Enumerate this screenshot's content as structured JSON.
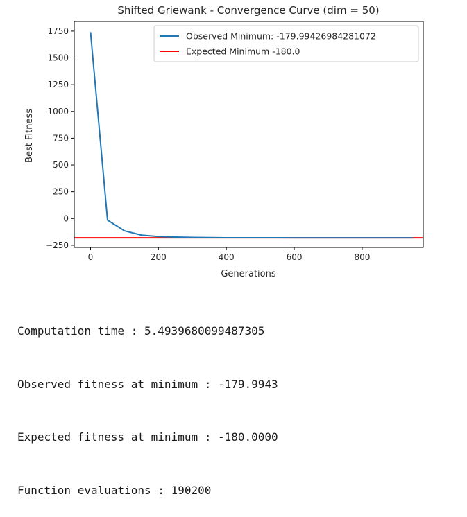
{
  "chart_data": {
    "type": "line",
    "title": "Shifted Griewank - Convergence Curve (dim = 50)",
    "xlabel": "Generations",
    "ylabel": "Best Fitness",
    "xlim": [
      -48,
      980
    ],
    "ylim": [
      -270,
      1840
    ],
    "xticks": [
      0,
      200,
      400,
      600,
      800
    ],
    "yticks": [
      -250,
      0,
      250,
      500,
      750,
      1000,
      1250,
      1500,
      1750
    ],
    "legend_position": "top-right",
    "grid": false,
    "series": [
      {
        "name": "Observed Minimum: -179.99426984281072",
        "color": "#1f77b4",
        "x": [
          0,
          50,
          100,
          150,
          200,
          250,
          300,
          350,
          400,
          450,
          500,
          550,
          600,
          650,
          700,
          750,
          800,
          850,
          900,
          950
        ],
        "y": [
          1740,
          -15,
          -115,
          -155,
          -168,
          -173,
          -176,
          -178,
          -179,
          -179.5,
          -179.7,
          -179.8,
          -179.9,
          -179.95,
          -179.97,
          -179.98,
          -179.99,
          -179.99,
          -179.994,
          -179.994
        ]
      }
    ],
    "hlines": [
      {
        "name": "Expected Minimum -180.0",
        "y": -180.0,
        "color": "#ff0000"
      }
    ]
  },
  "output": {
    "lines": [
      "Computation time : 5.4939680099487305",
      "Observed fitness at minimum : -179.9943",
      "Expected fitness at minimum : -180.0000",
      "Function evaluations : 190200"
    ]
  }
}
